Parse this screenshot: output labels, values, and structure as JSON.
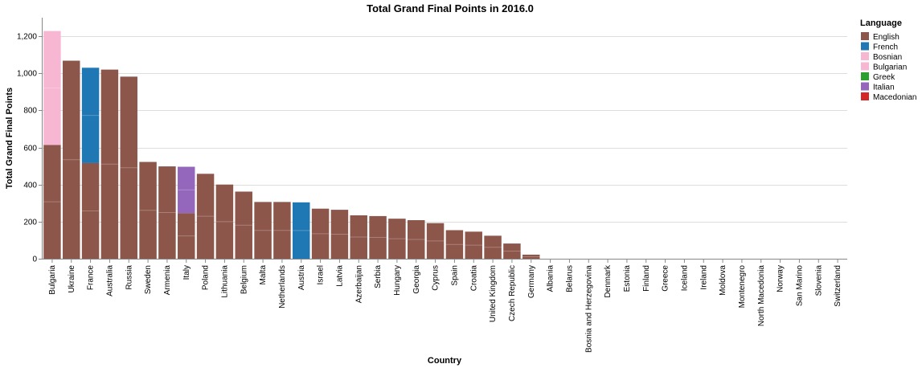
{
  "chart_data": {
    "type": "bar",
    "stacked": true,
    "title": "Total Grand Final Points in 2016.0",
    "xlabel": "Country",
    "ylabel": "Total Grand Final Points",
    "ylim": [
      0,
      1300
    ],
    "yticks": [
      0,
      200,
      400,
      600,
      800,
      1000,
      1200
    ],
    "ytick_labels": [
      "0",
      "200",
      "400",
      "600",
      "800",
      "1,000",
      "1,200"
    ],
    "grid": true,
    "legend": {
      "title": "Language",
      "placement": "top-right",
      "entries": [
        {
          "label": "English",
          "color": "#8c564b"
        },
        {
          "label": "French",
          "color": "#1f77b4"
        },
        {
          "label": "Bosnian",
          "color": "#f7b6d2"
        },
        {
          "label": "Bulgarian",
          "color": "#f7b6d2"
        },
        {
          "label": "Greek",
          "color": "#2ca02c"
        },
        {
          "label": "Italian",
          "color": "#9467bd"
        },
        {
          "label": "Macedonian",
          "color": "#d62728"
        }
      ]
    },
    "categories": [
      "Bulgaria",
      "Ukraine",
      "France",
      "Australia",
      "Russia",
      "Sweden",
      "Armenia",
      "Italy",
      "Poland",
      "Lithuania",
      "Belgium",
      "Malta",
      "Netherlands",
      "Austria",
      "Israel",
      "Latvia",
      "Azerbaijan",
      "Serbia",
      "Hungary",
      "Georgia",
      "Cyprus",
      "Spain",
      "Croatia",
      "United Kingdom",
      "Czech Republic",
      "Germany",
      "Albania",
      "Belarus",
      "Bosnia and Herzegovina",
      "Denmark",
      "Estonia",
      "Finland",
      "Greece",
      "Iceland",
      "Ireland",
      "Moldova",
      "Montenegro",
      "North Macedonia",
      "Norway",
      "San Marino",
      "Slovenia",
      "Switzerland"
    ],
    "series": [
      {
        "name": "English",
        "color": "#8c564b",
        "values": [
          614,
          1068,
          516,
          1020,
          982,
          522,
          498,
          246,
          458,
          400,
          362,
          306,
          306,
          0,
          270,
          264,
          234,
          230,
          216,
          208,
          192,
          154,
          146,
          124,
          82,
          22,
          0,
          0,
          0,
          0,
          0,
          0,
          0,
          0,
          0,
          0,
          0,
          0,
          0,
          0,
          0,
          0
        ]
      },
      {
        "name": "French",
        "color": "#1f77b4",
        "values": [
          0,
          0,
          514,
          0,
          0,
          0,
          0,
          0,
          0,
          0,
          0,
          0,
          0,
          304,
          0,
          0,
          0,
          0,
          0,
          0,
          0,
          0,
          0,
          0,
          0,
          0,
          0,
          0,
          0,
          0,
          0,
          0,
          0,
          0,
          0,
          0,
          0,
          0,
          0,
          0,
          0,
          0
        ]
      },
      {
        "name": "Bosnian",
        "color": "#f7b6d2",
        "values": [
          0,
          0,
          0,
          0,
          0,
          0,
          0,
          0,
          0,
          0,
          0,
          0,
          0,
          0,
          0,
          0,
          0,
          0,
          0,
          0,
          0,
          0,
          0,
          0,
          0,
          0,
          0,
          0,
          0,
          0,
          0,
          0,
          0,
          0,
          0,
          0,
          0,
          0,
          0,
          0,
          0,
          0
        ]
      },
      {
        "name": "Bulgarian",
        "color": "#f7b6d2",
        "values": [
          614,
          0,
          0,
          0,
          0,
          0,
          0,
          0,
          0,
          0,
          0,
          0,
          0,
          0,
          0,
          0,
          0,
          0,
          0,
          0,
          0,
          0,
          0,
          0,
          0,
          0,
          0,
          0,
          0,
          0,
          0,
          0,
          0,
          0,
          0,
          0,
          0,
          0,
          0,
          0,
          0,
          0
        ]
      },
      {
        "name": "Greek",
        "color": "#2ca02c",
        "values": [
          0,
          0,
          0,
          0,
          0,
          0,
          0,
          0,
          0,
          0,
          0,
          0,
          0,
          0,
          0,
          0,
          0,
          0,
          0,
          0,
          0,
          0,
          0,
          0,
          0,
          0,
          0,
          0,
          0,
          0,
          0,
          0,
          0,
          0,
          0,
          0,
          0,
          0,
          0,
          0,
          0,
          0
        ]
      },
      {
        "name": "Italian",
        "color": "#9467bd",
        "values": [
          0,
          0,
          0,
          0,
          0,
          0,
          0,
          250,
          0,
          0,
          0,
          0,
          0,
          0,
          0,
          0,
          0,
          0,
          0,
          0,
          0,
          0,
          0,
          0,
          0,
          0,
          0,
          0,
          0,
          0,
          0,
          0,
          0,
          0,
          0,
          0,
          0,
          0,
          0,
          0,
          0,
          0
        ]
      },
      {
        "name": "Macedonian",
        "color": "#d62728",
        "values": [
          0,
          0,
          0,
          0,
          0,
          0,
          0,
          0,
          0,
          0,
          0,
          0,
          0,
          0,
          0,
          0,
          0,
          0,
          0,
          0,
          0,
          0,
          0,
          0,
          0,
          0,
          0,
          0,
          0,
          0,
          0,
          0,
          0,
          0,
          0,
          0,
          0,
          0,
          0,
          0,
          0,
          0
        ]
      }
    ]
  }
}
